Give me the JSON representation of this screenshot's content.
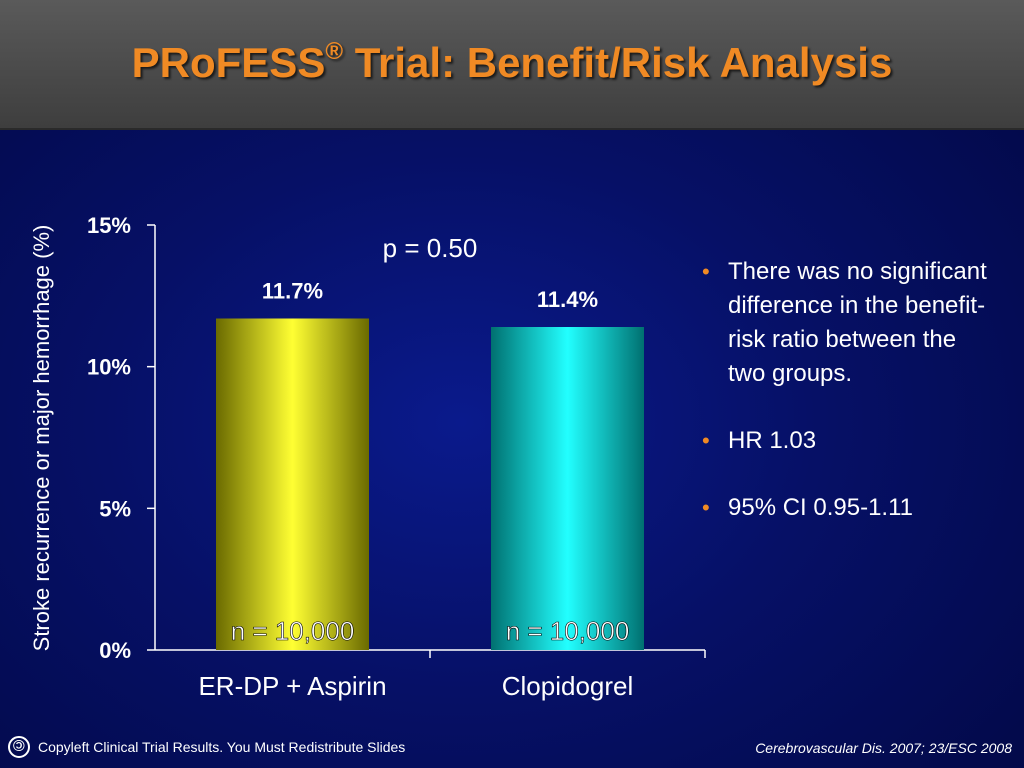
{
  "title": {
    "main": "PRoFESS",
    "mark": "®",
    "rest": " Trial: Benefit/Risk Analysis"
  },
  "chart_data": {
    "type": "bar",
    "categories": [
      "ER-DP + Aspirin",
      "Clopidogrel"
    ],
    "values": [
      11.7,
      11.4
    ],
    "value_labels": [
      "11.7%",
      "11.4%"
    ],
    "n_labels": [
      "n = 10,000",
      "n = 10,000"
    ],
    "ylabel": "Stroke recurrence or major hemorrhage (%)",
    "ylim": [
      0,
      15
    ],
    "yticks": [
      0,
      5,
      10,
      15
    ],
    "ytick_labels": [
      "0%",
      "5%",
      "10%",
      "15%"
    ],
    "annotation": "p = 0.50",
    "bar_colors": [
      "#ecec12",
      "#10e6e6"
    ],
    "grid": false
  },
  "bullets": [
    "There was no significant difference in the benefit-risk ratio between the two groups.",
    "HR 1.03",
    "95% CI 0.95-1.11"
  ],
  "footer": {
    "copyleft_text": "Copyleft Clinical Trial Results. You Must Redistribute Slides",
    "citation": "Cerebrovascular Dis. 2007; 23/ESC 2008"
  },
  "colors": {
    "accent": "#f08a24",
    "text": "#ffffff"
  }
}
